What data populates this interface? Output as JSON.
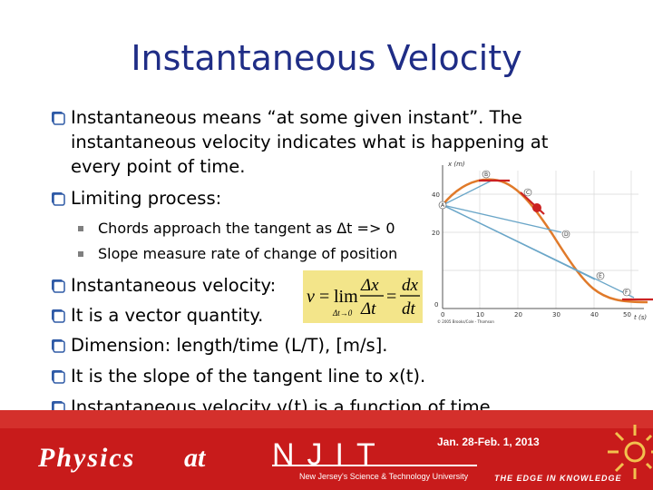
{
  "slide": {
    "title": "Instantaneous Velocity",
    "bullets": [
      {
        "line1": "Instantaneous means “at some given instant”. The",
        "line2": "instantaneous velocity indicates what is happening at",
        "line3": "every point of time."
      },
      {
        "text": "Limiting process:"
      }
    ],
    "sub_bullets": [
      "Chords approach the tangent as Δt => 0",
      "Slope measure rate of change of position"
    ],
    "bullets2": [
      "Instantaneous velocity:",
      "It is a vector quantity.",
      "Dimension: length/time (L/T), [m/s].",
      "It is the slope of the tangent line to x(t).",
      "Instantaneous velocity v(t) is a function of time."
    ],
    "formula": {
      "v": "v",
      "eq": "=",
      "lim": "lim",
      "sub": "Δt→0",
      "num1": "Δx",
      "den1": "Δt",
      "num2": "dx",
      "den2": "dt"
    },
    "bullet_color": "#2f5aa6",
    "title_color": "#1f2d86"
  },
  "graph": {
    "y_axis_label": "x (m)",
    "x_axis_label": "t (s)",
    "y_ticks": [
      "40",
      "20",
      "0"
    ],
    "x_ticks": [
      "0",
      "10",
      "20",
      "30",
      "40",
      "50"
    ],
    "point_labels": [
      "A",
      "B",
      "C",
      "D",
      "E",
      "F"
    ],
    "credit": "© 2005 Brooks/Cole - Thomson",
    "curve_color": "#e07a2a",
    "line_color": "#cc2222"
  },
  "footer": {
    "date": "Jan. 28-Feb. 1, 2013",
    "physics": "Physics",
    "at": "at",
    "njit": "NJIT",
    "university": "New Jersey's Science & Technology University",
    "edge": "THE EDGE IN KNOWLEDGE",
    "bg_color": "#c81b1b"
  }
}
